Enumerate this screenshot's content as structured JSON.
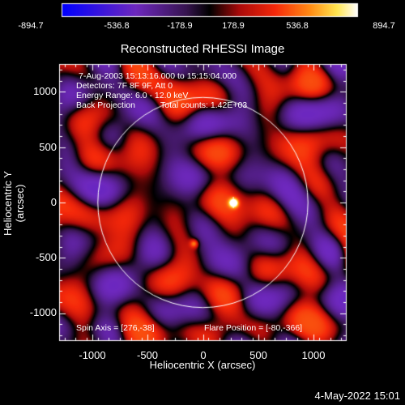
{
  "colorbar": {
    "ticks": [
      "-894.7",
      "-536.8",
      "-178.9",
      "178.9",
      "536.8",
      "894.7"
    ]
  },
  "plot": {
    "title": "Reconstructed RHESSI Image",
    "info": {
      "line1": "7-Aug-2003 15:13:16.000 to 15:15:04.000",
      "line2": "Detectors: 7F 8F 9F, Att 0",
      "line3": "Energy Range: 6.0 - 12.0 keV",
      "line4_left": "Back Projection",
      "line4_right": "Total counts: 1.42E+03"
    },
    "spin_axis": "Spin Axis = [276,-38]",
    "flare_position": "Flare Position = [-80,-366]",
    "xlabel": "Heliocentric X (arcsec)",
    "ylabel": "Heliocentric Y (arcsec)",
    "xticks": [
      "-1000",
      "-500",
      "0",
      "500",
      "1000"
    ],
    "yticks": [
      "1000",
      "500",
      "0",
      "-500",
      "-1000"
    ]
  },
  "footer": {
    "date": "4-May-2022 15:01"
  },
  "chart_data": {
    "type": "heatmap",
    "title": "Reconstructed RHESSI Image",
    "xlabel": "Heliocentric X (arcsec)",
    "ylabel": "Heliocentric Y (arcsec)",
    "xlim": [
      -1300,
      1300
    ],
    "ylim": [
      -1250,
      1250
    ],
    "color_range": [
      -894.7,
      894.7
    ],
    "solar_disk_radius": 950,
    "peaks": [
      {
        "x": 275,
        "y": 0,
        "value": 894.7
      },
      {
        "x": -80,
        "y": -366,
        "value": 560
      }
    ]
  }
}
